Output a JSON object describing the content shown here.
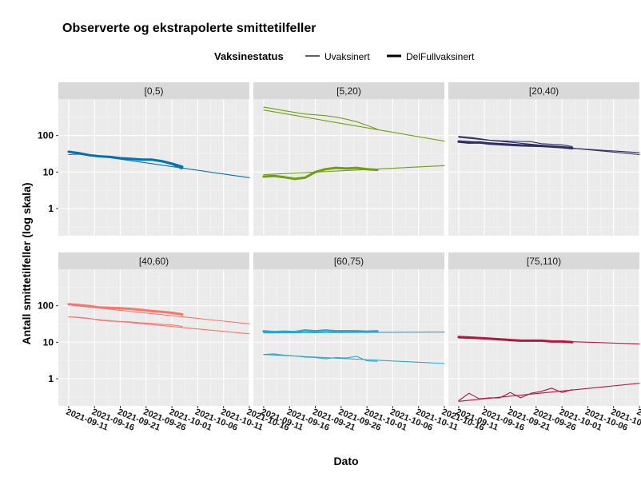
{
  "chart_data": {
    "type": "line",
    "title": "Observerte og ekstrapolerte smittetilfeller",
    "xlabel": "Dato",
    "ylabel": "Antall smittetilfeller (log skala)",
    "y_scale": "log10",
    "ylim": [
      0.18,
      1000
    ],
    "y_ticks": [
      1,
      10,
      100
    ],
    "y_tick_labels": [
      "1",
      "10",
      "100"
    ],
    "x_ticks": [
      "2021-09-11",
      "2021-09-16",
      "2021-09-21",
      "2021-09-26",
      "2021-10-01",
      "2021-10-06",
      "2021-10-11",
      "2021-10-16"
    ],
    "xlim": [
      "2021-09-09",
      "2021-10-16"
    ],
    "legend": {
      "title": "Vaksinestatus",
      "position": "top",
      "entries": [
        "Uvaksinert",
        "DelFullvaksinert"
      ]
    },
    "grid": true,
    "facets": [
      {
        "label": "[0,5)",
        "color": "#0072B2",
        "series": [
          {
            "name": "Uvaksinert",
            "kind": "observed",
            "x": [
              "2021-09-11",
              "2021-09-13",
              "2021-09-15",
              "2021-09-17",
              "2021-09-19",
              "2021-09-21",
              "2021-09-23",
              "2021-09-25",
              "2021-09-27",
              "2021-09-29",
              "2021-10-01",
              "2021-10-03"
            ],
            "y": [
              30,
              31,
              28,
              27,
              25,
              24,
              24,
              23,
              21,
              19,
              16,
              12
            ]
          },
          {
            "name": "DelFullvaksinert",
            "kind": "observed",
            "x": [
              "2021-09-11",
              "2021-09-13",
              "2021-09-15",
              "2021-09-17",
              "2021-09-19",
              "2021-09-21",
              "2021-09-23",
              "2021-09-25",
              "2021-09-27",
              "2021-09-29",
              "2021-10-01",
              "2021-10-03"
            ],
            "y": [
              36,
              33,
              29,
              27,
              26,
              24,
              23,
              22,
              22,
              20,
              17,
              14
            ]
          },
          {
            "name": "Uvaksinert",
            "kind": "extrapolated",
            "x": [
              "2021-09-11",
              "2021-10-16"
            ],
            "y": [
              36,
              7
            ]
          }
        ]
      },
      {
        "label": "[5,20)",
        "color": "#6FA010",
        "series": [
          {
            "name": "Uvaksinert",
            "kind": "observed",
            "x": [
              "2021-09-11",
              "2021-09-13",
              "2021-09-15",
              "2021-09-17",
              "2021-09-19",
              "2021-09-21",
              "2021-09-23",
              "2021-09-25",
              "2021-09-27",
              "2021-09-29",
              "2021-10-01",
              "2021-10-03"
            ],
            "y": [
              600,
              540,
              480,
              430,
              390,
              370,
              350,
              320,
              280,
              240,
              190,
              150
            ]
          },
          {
            "name": "DelFullvaksinert",
            "kind": "observed",
            "x": [
              "2021-09-11",
              "2021-09-13",
              "2021-09-15",
              "2021-09-17",
              "2021-09-19",
              "2021-09-21",
              "2021-09-23",
              "2021-09-25",
              "2021-09-27",
              "2021-09-29",
              "2021-10-01",
              "2021-10-03"
            ],
            "y": [
              7.5,
              7.8,
              7.2,
              6.5,
              7,
              10,
              12,
              13,
              12.5,
              13,
              12,
              11.5
            ]
          },
          {
            "name": "Uvaksinert",
            "kind": "extrapolated",
            "x": [
              "2021-09-11",
              "2021-10-16"
            ],
            "y": [
              500,
              70
            ]
          },
          {
            "name": "DelFullvaksinert",
            "kind": "extrapolated",
            "x": [
              "2021-09-11",
              "2021-10-16"
            ],
            "y": [
              8.5,
              15
            ]
          }
        ]
      },
      {
        "label": "[20,40)",
        "color": "#2F2F63",
        "series": [
          {
            "name": "Uvaksinert",
            "kind": "observed",
            "x": [
              "2021-09-11",
              "2021-09-13",
              "2021-09-15",
              "2021-09-17",
              "2021-09-19",
              "2021-09-21",
              "2021-09-23",
              "2021-09-25",
              "2021-09-27",
              "2021-09-29",
              "2021-10-01",
              "2021-10-03"
            ],
            "y": [
              95,
              90,
              82,
              75,
              72,
              70,
              69,
              68,
              60,
              58,
              56,
              50
            ]
          },
          {
            "name": "DelFullvaksinert",
            "kind": "observed",
            "x": [
              "2021-09-11",
              "2021-09-13",
              "2021-09-15",
              "2021-09-17",
              "2021-09-19",
              "2021-09-21",
              "2021-09-23",
              "2021-09-25",
              "2021-09-27",
              "2021-09-29",
              "2021-10-01",
              "2021-10-03"
            ],
            "y": [
              68,
              64,
              65,
              60,
              58,
              56,
              54,
              53,
              52,
              50,
              48,
              45
            ]
          },
          {
            "name": "Uvaksinert",
            "kind": "extrapolated",
            "x": [
              "2021-09-11",
              "2021-10-16"
            ],
            "y": [
              90,
              30
            ]
          },
          {
            "name": "DelFullvaksinert",
            "kind": "extrapolated",
            "x": [
              "2021-09-11",
              "2021-10-16"
            ],
            "y": [
              72,
              34
            ]
          }
        ]
      },
      {
        "label": "[40,60)",
        "color": "#F8766D",
        "series": [
          {
            "name": "Uvaksinert",
            "kind": "observed",
            "x": [
              "2021-09-11",
              "2021-09-13",
              "2021-09-15",
              "2021-09-17",
              "2021-09-19",
              "2021-09-21",
              "2021-09-23",
              "2021-09-25",
              "2021-09-27",
              "2021-09-29",
              "2021-10-01",
              "2021-10-03"
            ],
            "y": [
              50,
              48,
              45,
              40,
              38,
              37,
              36,
              34,
              33,
              31,
              30,
              27
            ]
          },
          {
            "name": "DelFullvaksinert",
            "kind": "observed",
            "x": [
              "2021-09-11",
              "2021-09-13",
              "2021-09-15",
              "2021-09-17",
              "2021-09-19",
              "2021-09-21",
              "2021-09-23",
              "2021-09-25",
              "2021-09-27",
              "2021-09-29",
              "2021-10-01",
              "2021-10-03"
            ],
            "y": [
              110,
              105,
              98,
              90,
              88,
              86,
              82,
              77,
              72,
              68,
              64,
              58
            ]
          },
          {
            "name": "Uvaksinert",
            "kind": "extrapolated",
            "x": [
              "2021-09-11",
              "2021-10-16"
            ],
            "y": [
              50,
              17
            ]
          },
          {
            "name": "DelFullvaksinert",
            "kind": "extrapolated",
            "x": [
              "2021-09-11",
              "2021-10-16"
            ],
            "y": [
              105,
              32
            ]
          }
        ]
      },
      {
        "label": "[60,75)",
        "color": "#2AA7C8",
        "series": [
          {
            "name": "Uvaksinert",
            "kind": "observed",
            "x": [
              "2021-09-11",
              "2021-09-13",
              "2021-09-15",
              "2021-09-17",
              "2021-09-19",
              "2021-09-21",
              "2021-09-23",
              "2021-09-25",
              "2021-09-27",
              "2021-09-29",
              "2021-10-01",
              "2021-10-03"
            ],
            "y": [
              4.6,
              4.8,
              4.4,
              4.2,
              3.9,
              3.8,
              3.5,
              3.8,
              3.7,
              4.1,
              3.1,
              3.0
            ]
          },
          {
            "name": "DelFullvaksinert",
            "kind": "observed",
            "x": [
              "2021-09-11",
              "2021-09-13",
              "2021-09-15",
              "2021-09-17",
              "2021-09-19",
              "2021-09-21",
              "2021-09-23",
              "2021-09-25",
              "2021-09-27",
              "2021-09-29",
              "2021-10-01",
              "2021-10-03"
            ],
            "y": [
              20,
              19,
              19.5,
              19,
              21,
              20,
              21,
              20,
              20,
              20,
              19.5,
              20
            ]
          },
          {
            "name": "Uvaksinert",
            "kind": "extrapolated",
            "x": [
              "2021-09-11",
              "2021-10-16"
            ],
            "y": [
              4.6,
              2.6
            ]
          },
          {
            "name": "DelFullvaksinert",
            "kind": "extrapolated",
            "x": [
              "2021-09-11",
              "2021-10-16"
            ],
            "y": [
              18,
              19
            ]
          }
        ]
      },
      {
        "label": "[75,110)",
        "color": "#B5163F",
        "series": [
          {
            "name": "Uvaksinert",
            "kind": "observed",
            "x": [
              "2021-09-11",
              "2021-09-13",
              "2021-09-15",
              "2021-09-17",
              "2021-09-19",
              "2021-09-21",
              "2021-09-23",
              "2021-09-25",
              "2021-09-27",
              "2021-09-29",
              "2021-10-01",
              "2021-10-03"
            ],
            "y": [
              0.25,
              0.4,
              0.28,
              0.3,
              0.3,
              0.42,
              0.3,
              0.4,
              0.45,
              0.55,
              0.42,
              0.5
            ]
          },
          {
            "name": "DelFullvaksinert",
            "kind": "observed",
            "x": [
              "2021-09-11",
              "2021-09-13",
              "2021-09-15",
              "2021-09-17",
              "2021-09-19",
              "2021-09-21",
              "2021-09-23",
              "2021-09-25",
              "2021-09-27",
              "2021-09-29",
              "2021-10-01",
              "2021-10-03"
            ],
            "y": [
              14,
              13.5,
              13,
              12.5,
              12,
              11.5,
              11,
              11,
              11,
              10.5,
              10.5,
              10
            ]
          },
          {
            "name": "Uvaksinert",
            "kind": "extrapolated",
            "x": [
              "2021-09-11",
              "2021-10-16"
            ],
            "y": [
              0.24,
              0.75
            ]
          },
          {
            "name": "DelFullvaksinert",
            "kind": "extrapolated",
            "x": [
              "2021-09-11",
              "2021-10-16"
            ],
            "y": [
              13,
              9
            ]
          }
        ]
      }
    ]
  }
}
